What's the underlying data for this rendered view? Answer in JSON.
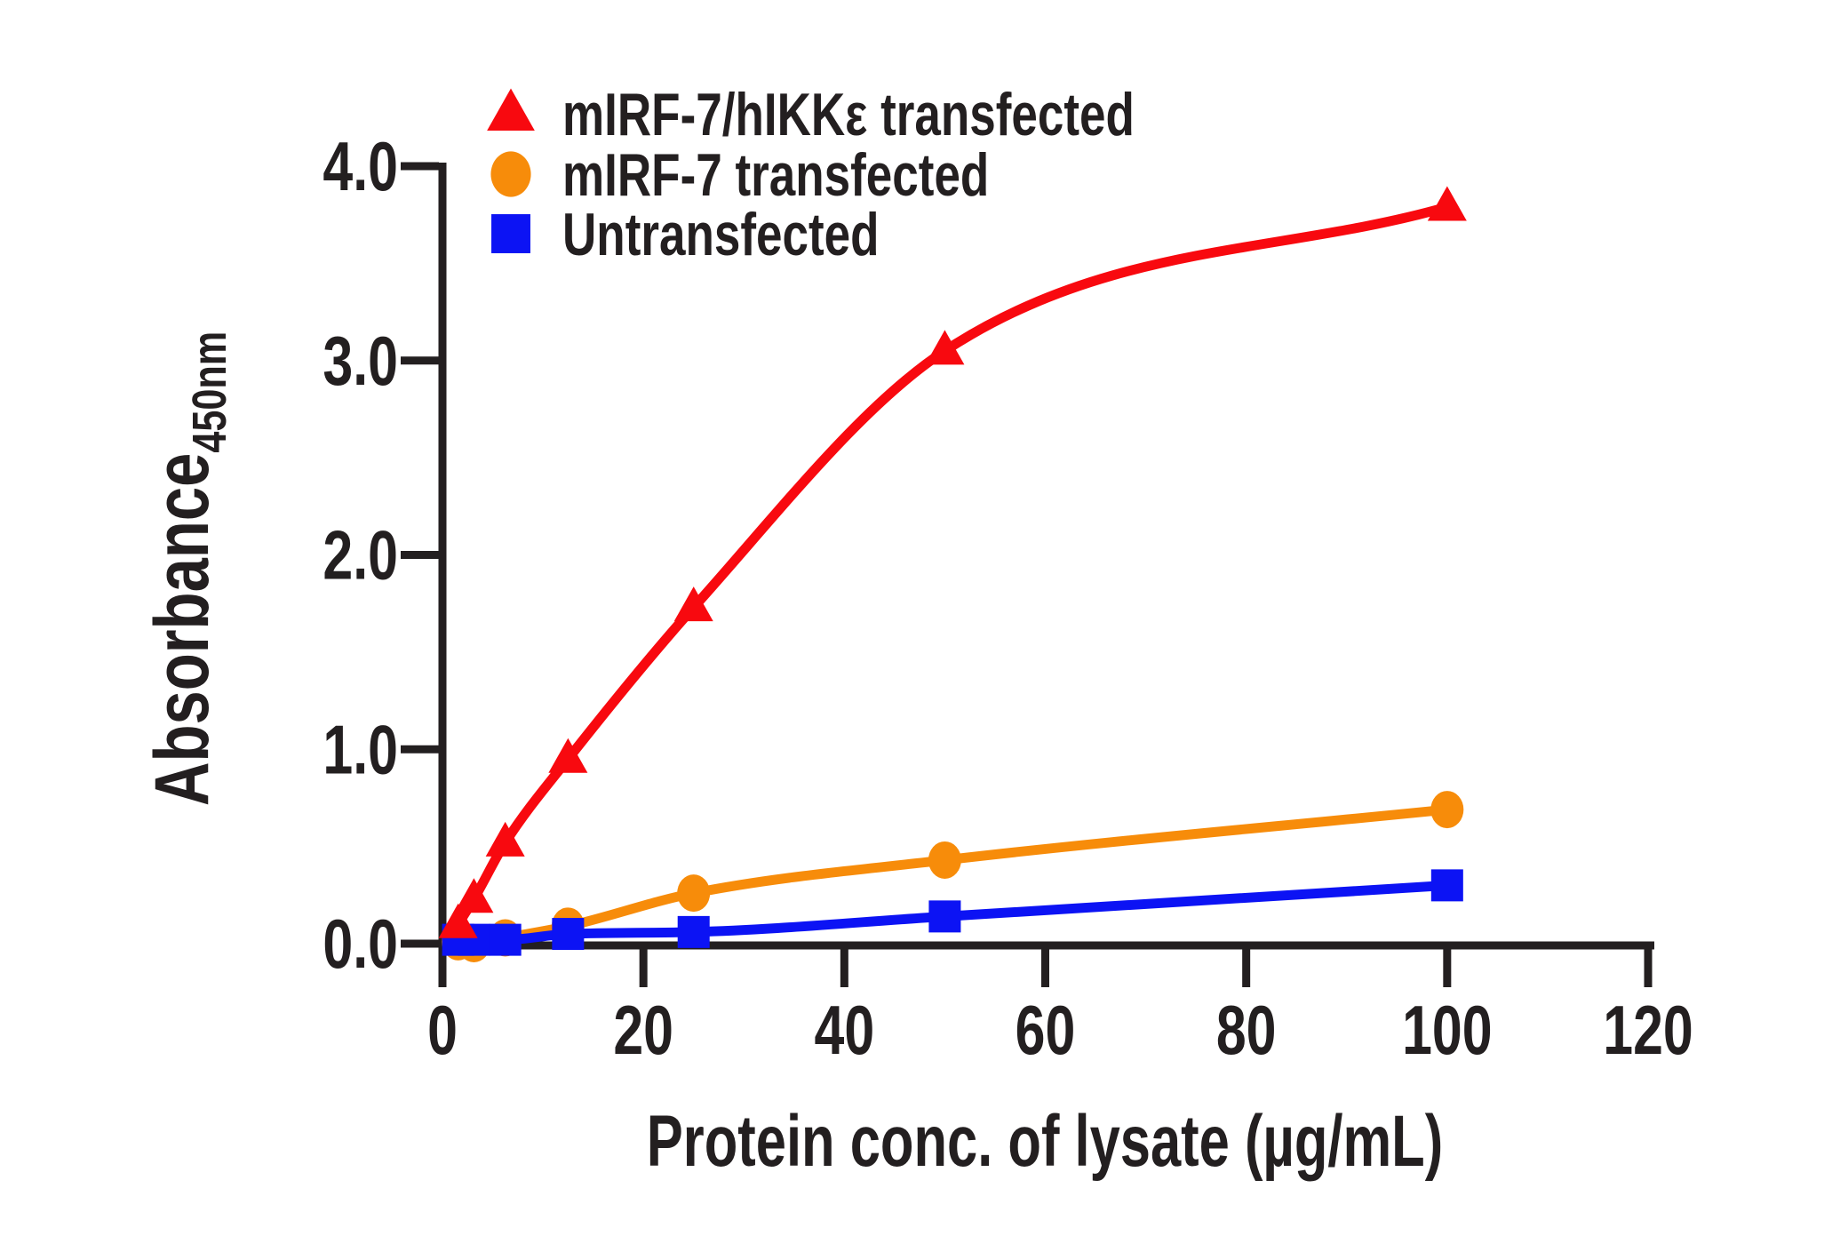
{
  "figure": {
    "background": "#ffffff",
    "axis_color": "#231f20",
    "text_color": "#231f20"
  },
  "legend": {
    "items": [
      {
        "label": "mIRF-7/hIKKε transfected",
        "marker": "triangle-icon",
        "color": "#f8090f"
      },
      {
        "label": "mIRF-7 transfected",
        "marker": "circle-icon",
        "color": "#f78c0a"
      },
      {
        "label": "Untransfected",
        "marker": "square-icon",
        "color": "#0c13f4"
      }
    ]
  },
  "chart_data": {
    "type": "line",
    "title": "",
    "xlabel": "Protein conc. of lysate (µg/mL)",
    "ylabel": "Absorbance",
    "ylabel_subscript": "450nm",
    "xlim": [
      0,
      120
    ],
    "ylim": [
      0,
      4.0
    ],
    "x_tick_values": [
      0,
      20,
      40,
      60,
      80,
      100,
      120
    ],
    "x_tick_labels": [
      "0",
      "20",
      "40",
      "60",
      "80",
      "100",
      "120"
    ],
    "y_tick_values": [
      0.0,
      1.0,
      2.0,
      3.0,
      4.0
    ],
    "y_tick_labels": [
      "0.0",
      "1.0",
      "2.0",
      "3.0",
      "4.0"
    ],
    "grid": false,
    "legend_position": "top-left inside",
    "x": [
      1.56,
      3.13,
      6.25,
      12.5,
      25,
      50,
      100
    ],
    "series": [
      {
        "name": "mIRF-7/hIKKε transfected",
        "marker": "triangle",
        "color": "#f8090f",
        "values": [
          0.1,
          0.23,
          0.52,
          0.95,
          1.73,
          3.05,
          3.79
        ]
      },
      {
        "name": "mIRF-7 transfected",
        "marker": "circle",
        "color": "#f78c0a",
        "values": [
          0.01,
          0.0,
          0.03,
          0.09,
          0.26,
          0.43,
          0.69
        ]
      },
      {
        "name": "Untransfected",
        "marker": "square",
        "color": "#0c13f4",
        "values": [
          0.02,
          0.02,
          0.02,
          0.05,
          0.06,
          0.14,
          0.3
        ]
      }
    ]
  }
}
